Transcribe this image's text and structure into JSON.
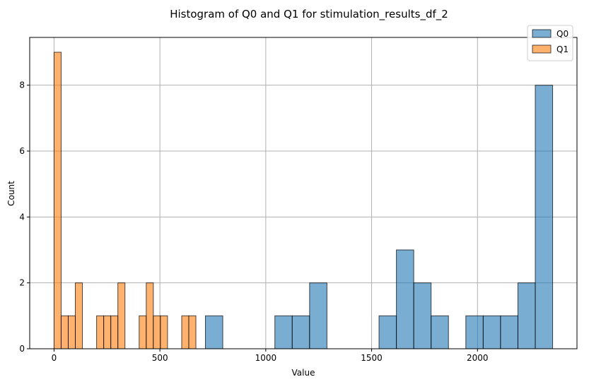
{
  "chart_data": {
    "type": "bar",
    "title": "Histogram of Q0 and Q1 for stimulation_results_df_2",
    "xlabel": "Value",
    "ylabel": "Count",
    "xlim": [
      -115,
      2470
    ],
    "ylim": [
      0,
      9.45
    ],
    "xticks": [
      0,
      500,
      1000,
      1500,
      2000
    ],
    "yticks": [
      0,
      2,
      4,
      6,
      8
    ],
    "grid": true,
    "legend_position": "top-right",
    "series": [
      {
        "name": "Q0",
        "color": "#1f77b4",
        "bins": [
          {
            "x0": 715,
            "x1": 797,
            "count": 1
          },
          {
            "x0": 1043,
            "x1": 1125,
            "count": 1
          },
          {
            "x0": 1125,
            "x1": 1207,
            "count": 1
          },
          {
            "x0": 1207,
            "x1": 1289,
            "count": 2
          },
          {
            "x0": 1535,
            "x1": 1617,
            "count": 1
          },
          {
            "x0": 1617,
            "x1": 1699,
            "count": 3
          },
          {
            "x0": 1699,
            "x1": 1781,
            "count": 2
          },
          {
            "x0": 1781,
            "x1": 1863,
            "count": 1
          },
          {
            "x0": 1945,
            "x1": 2027,
            "count": 1
          },
          {
            "x0": 2027,
            "x1": 2109,
            "count": 1
          },
          {
            "x0": 2109,
            "x1": 2191,
            "count": 1
          },
          {
            "x0": 2191,
            "x1": 2273,
            "count": 2
          },
          {
            "x0": 2273,
            "x1": 2355,
            "count": 8
          }
        ]
      },
      {
        "name": "Q1",
        "color": "#ff7f0e",
        "bins": [
          {
            "x0": 0,
            "x1": 33.5,
            "count": 9
          },
          {
            "x0": 33.5,
            "x1": 67,
            "count": 1
          },
          {
            "x0": 67,
            "x1": 100.5,
            "count": 1
          },
          {
            "x0": 100.5,
            "x1": 134,
            "count": 2
          },
          {
            "x0": 201,
            "x1": 234.5,
            "count": 1
          },
          {
            "x0": 234.5,
            "x1": 268,
            "count": 1
          },
          {
            "x0": 268,
            "x1": 301.5,
            "count": 1
          },
          {
            "x0": 301.5,
            "x1": 335,
            "count": 2
          },
          {
            "x0": 402,
            "x1": 435.5,
            "count": 1
          },
          {
            "x0": 435.5,
            "x1": 469,
            "count": 2
          },
          {
            "x0": 469,
            "x1": 502.5,
            "count": 1
          },
          {
            "x0": 502.5,
            "x1": 536,
            "count": 1
          },
          {
            "x0": 603,
            "x1": 636.5,
            "count": 1
          },
          {
            "x0": 636.5,
            "x1": 670,
            "count": 1
          }
        ]
      }
    ]
  }
}
